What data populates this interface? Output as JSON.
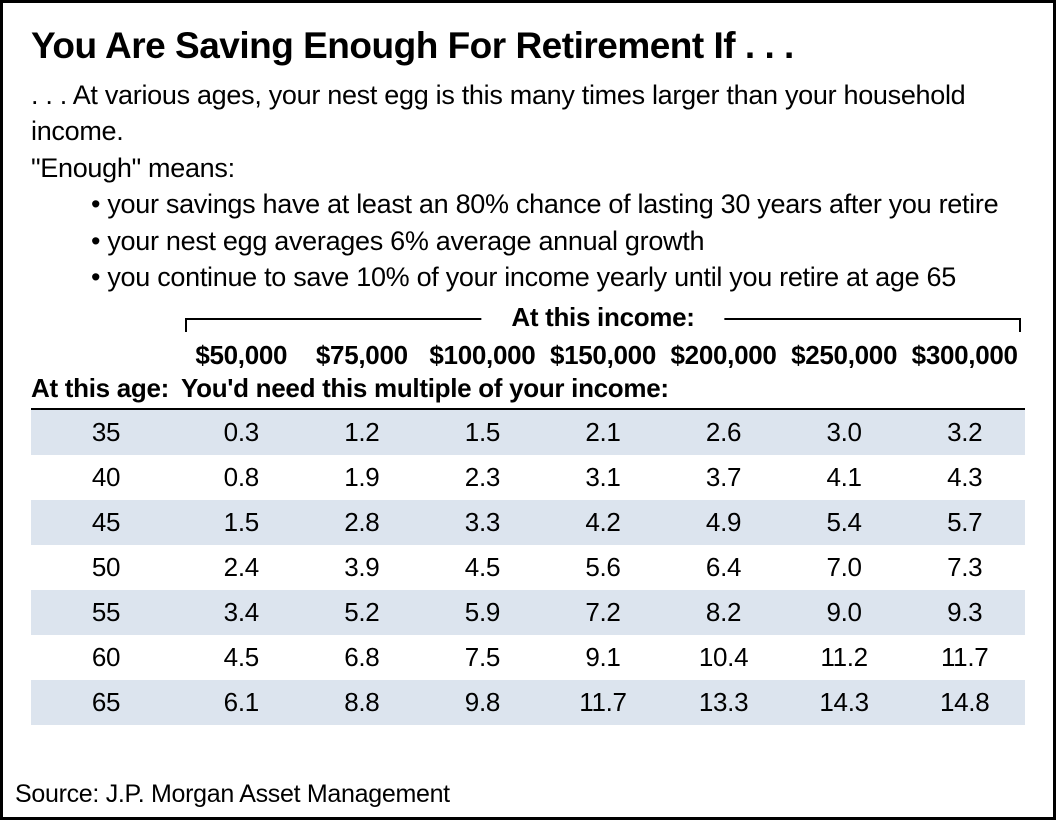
{
  "title": "You Are Saving Enough For Retirement If . . .",
  "intro_line1": ". . . At various ages, your nest egg is this many times larger than your household income.",
  "intro_line2": "\"Enough\" means:",
  "bullets": [
    "your savings have at least an 80% chance of lasting 30 years after you retire",
    "your nest egg averages 6% average annual growth",
    "you continue to save 10% of your income yearly until you retire at age 65"
  ],
  "table": {
    "income_header_label": "At this income:",
    "age_header_label": "At this age:",
    "sub_header_label": "You'd need this multiple of your income:",
    "income_columns": [
      "$50,000",
      "$75,000",
      "$100,000",
      "$150,000",
      "$200,000",
      "$250,000",
      "$300,000"
    ],
    "rows": [
      {
        "age": "35",
        "values": [
          "0.3",
          "1.2",
          "1.5",
          "2.1",
          "2.6",
          "3.0",
          "3.2"
        ]
      },
      {
        "age": "40",
        "values": [
          "0.8",
          "1.9",
          "2.3",
          "3.1",
          "3.7",
          "4.1",
          "4.3"
        ]
      },
      {
        "age": "45",
        "values": [
          "1.5",
          "2.8",
          "3.3",
          "4.2",
          "4.9",
          "5.4",
          "5.7"
        ]
      },
      {
        "age": "50",
        "values": [
          "2.4",
          "3.9",
          "4.5",
          "5.6",
          "6.4",
          "7.0",
          "7.3"
        ]
      },
      {
        "age": "55",
        "values": [
          "3.4",
          "5.2",
          "5.9",
          "7.2",
          "8.2",
          "9.0",
          "9.3"
        ]
      },
      {
        "age": "60",
        "values": [
          "4.5",
          "6.8",
          "7.5",
          "9.1",
          "10.4",
          "11.2",
          "11.7"
        ]
      },
      {
        "age": "65",
        "values": [
          "6.1",
          "8.8",
          "9.8",
          "11.7",
          "13.3",
          "14.3",
          "14.8"
        ]
      }
    ],
    "row_stripe_color": "#dce4ee",
    "background_color": "#ffffff"
  },
  "source_label": "Source:  J.P. Morgan Asset Management"
}
